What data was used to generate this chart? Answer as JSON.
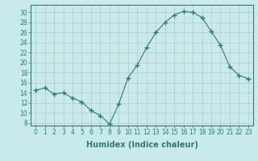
{
  "x": [
    0,
    1,
    2,
    3,
    4,
    5,
    6,
    7,
    8,
    9,
    10,
    11,
    12,
    13,
    14,
    15,
    16,
    17,
    18,
    19,
    20,
    21,
    22,
    23
  ],
  "y": [
    14.5,
    15.0,
    13.8,
    14.0,
    13.0,
    12.2,
    10.5,
    9.5,
    7.8,
    11.8,
    17.0,
    19.5,
    23.0,
    26.0,
    28.0,
    29.5,
    30.2,
    30.0,
    29.0,
    26.2,
    23.5,
    19.2,
    17.5,
    16.8
  ],
  "line_color": "#2e7d6e",
  "marker": "+",
  "marker_size": 4,
  "bg_color": "#c8eaea",
  "grid_color": "#b8c8c8",
  "xlabel": "Humidex (Indice chaleur)",
  "ylabel_ticks": [
    8,
    10,
    12,
    14,
    16,
    18,
    20,
    22,
    24,
    26,
    28,
    30
  ],
  "xlim": [
    -0.5,
    23.5
  ],
  "ylim": [
    7.5,
    31.5
  ],
  "xticks": [
    0,
    1,
    2,
    3,
    4,
    5,
    6,
    7,
    8,
    9,
    10,
    11,
    12,
    13,
    14,
    15,
    16,
    17,
    18,
    19,
    20,
    21,
    22,
    23
  ],
  "tick_color": "#2e7d6e",
  "label_color": "#2e7d6e",
  "font_size_xlabel": 7,
  "font_size_ticks": 5.5
}
